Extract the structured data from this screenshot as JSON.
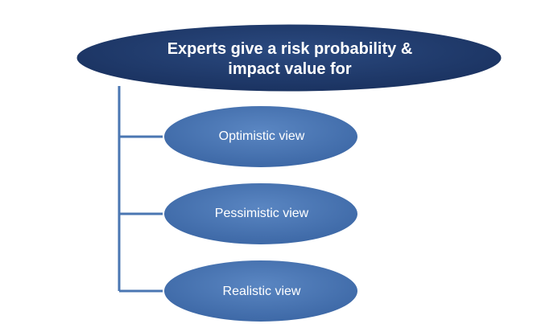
{
  "diagram": {
    "root": {
      "line1": "Experts give a risk probability &",
      "line2": "impact value for"
    },
    "children": [
      {
        "label": "Optimistic view"
      },
      {
        "label": "Pessimistic view"
      },
      {
        "label": "Realistic view"
      }
    ]
  },
  "colors": {
    "root_fill": "#1f3864",
    "child_fill": "#4a76b2",
    "connector": "#4a76b2",
    "text": "#ffffff"
  }
}
